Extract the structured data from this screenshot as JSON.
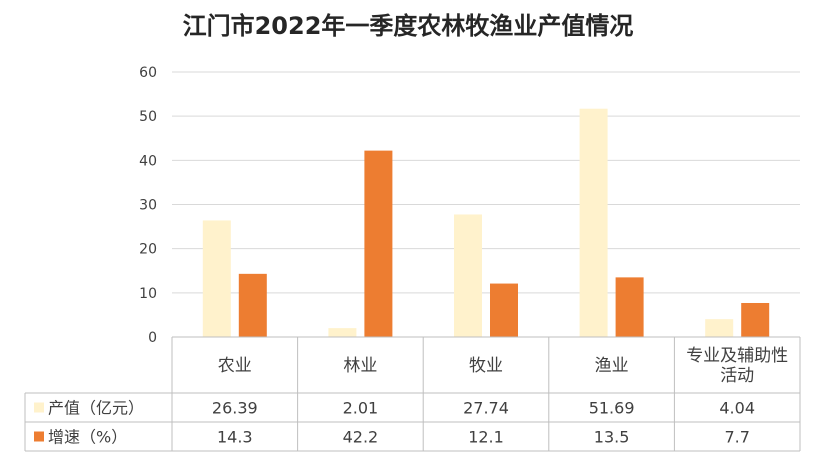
{
  "chart_data": {
    "type": "bar",
    "title": "江门市2022年一季度农林牧渔业产值情况",
    "categories": [
      "农业",
      "林业",
      "牧业",
      "渔业",
      "专业及辅助性活动"
    ],
    "category_lines": [
      [
        "农业"
      ],
      [
        "林业"
      ],
      [
        "牧业"
      ],
      [
        "渔业"
      ],
      [
        "专业及辅助性",
        "活动"
      ]
    ],
    "series": [
      {
        "name": "产值（亿元）",
        "values": [
          26.39,
          2.01,
          27.74,
          51.69,
          4.04
        ],
        "color": "#FFF2CC"
      },
      {
        "name": "增速（%）",
        "values": [
          14.3,
          42.2,
          12.1,
          13.5,
          7.7
        ],
        "color": "#ED7D31"
      }
    ],
    "value_labels": [
      [
        "26.39",
        "2.01",
        "27.74",
        "51.69",
        "4.04"
      ],
      [
        "14.3",
        "42.2",
        "12.1",
        "13.5",
        "7.7"
      ]
    ],
    "ylim": [
      0,
      60
    ],
    "yticks": [
      0,
      10,
      20,
      30,
      40,
      50,
      60
    ],
    "grid": true,
    "legend": "data-table",
    "gridline_color": "#D9D9D9",
    "table_line_color": "#BFBFBF"
  }
}
